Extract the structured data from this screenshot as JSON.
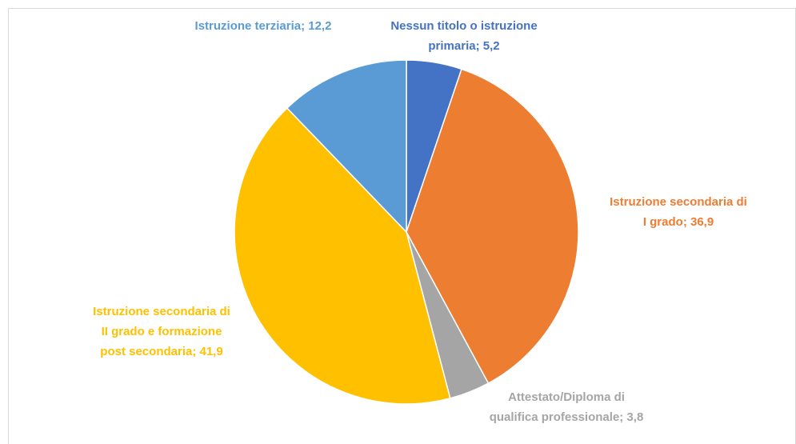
{
  "chart_data": {
    "type": "pie",
    "values": [
      5.2,
      36.9,
      3.8,
      41.9,
      12.2
    ],
    "value_labels": [
      "Nessun titolo o istruzione primaria; 5,2",
      "Istruzione secondaria di I grado; 36,9",
      "Attestato/Diploma di qualifica professionale; 3,8",
      "Istruzione secondaria di II grado e formazione post secondaria; 41,9",
      "Istruzione terziaria; 12,2"
    ],
    "colors": [
      "#4472c4",
      "#ed7d31",
      "#a5a5a5",
      "#ffc000",
      "#5b9bd5"
    ]
  }
}
